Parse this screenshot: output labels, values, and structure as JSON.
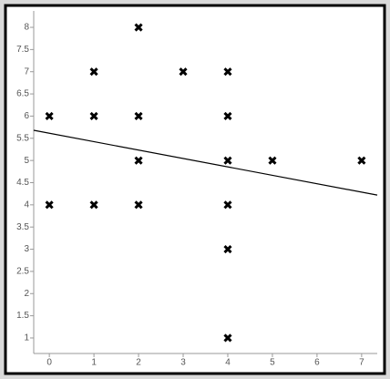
{
  "chart_data": {
    "type": "scatter",
    "series": [
      {
        "color": "#000000",
        "x": [
          0,
          0,
          1,
          1,
          1,
          2,
          2,
          2,
          2,
          3,
          4,
          4,
          4,
          4,
          4,
          4,
          5,
          7
        ],
        "values": [
          6,
          4,
          7,
          6,
          4,
          8,
          6,
          5,
          4,
          7,
          7,
          6,
          5,
          4,
          3,
          1,
          5,
          5
        ]
      },
      {
        "type": "line",
        "color": "#000000",
        "x": [
          -0.35,
          7.35
        ],
        "values": [
          5.68,
          4.22
        ]
      }
    ],
    "xlim": [
      -0.35,
      7.35
    ],
    "ylim": [
      0.65,
      8.37
    ],
    "xticks": [
      0,
      1,
      2,
      3,
      4,
      5,
      6,
      7
    ],
    "yticks": [
      1,
      1.5,
      2,
      2.5,
      3,
      3.5,
      4,
      4.5,
      5,
      5.5,
      6,
      6.5,
      7,
      7.5,
      8
    ],
    "grid": false
  }
}
